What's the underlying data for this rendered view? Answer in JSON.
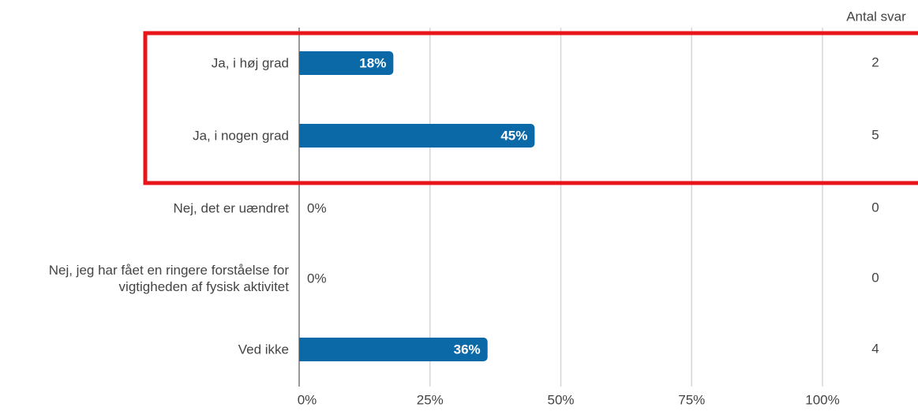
{
  "chart_data": {
    "type": "bar",
    "orientation": "horizontal",
    "categories": [
      "Ja, i høj grad",
      "Ja, i nogen grad",
      "Nej, det er uændret",
      "Nej, jeg har fået en ringere forståelse for vigtigheden af fysisk aktivitet",
      "Ved ikke"
    ],
    "values": [
      18,
      45,
      0,
      0,
      36
    ],
    "value_labels": [
      "18%",
      "45%",
      "0%",
      "0%",
      "36%"
    ],
    "color": "#0b69a8",
    "xlim": [
      0,
      100
    ],
    "xticks": [
      {
        "value": 0,
        "label": "0%"
      },
      {
        "value": 25,
        "label": "25%"
      },
      {
        "value": 50,
        "label": "50%"
      },
      {
        "value": 75,
        "label": "75%"
      },
      {
        "value": 100,
        "label": "100%"
      }
    ],
    "grid": true,
    "counts": {
      "title": "Antal svar",
      "values": [
        2,
        5,
        0,
        0,
        4
      ]
    }
  }
}
